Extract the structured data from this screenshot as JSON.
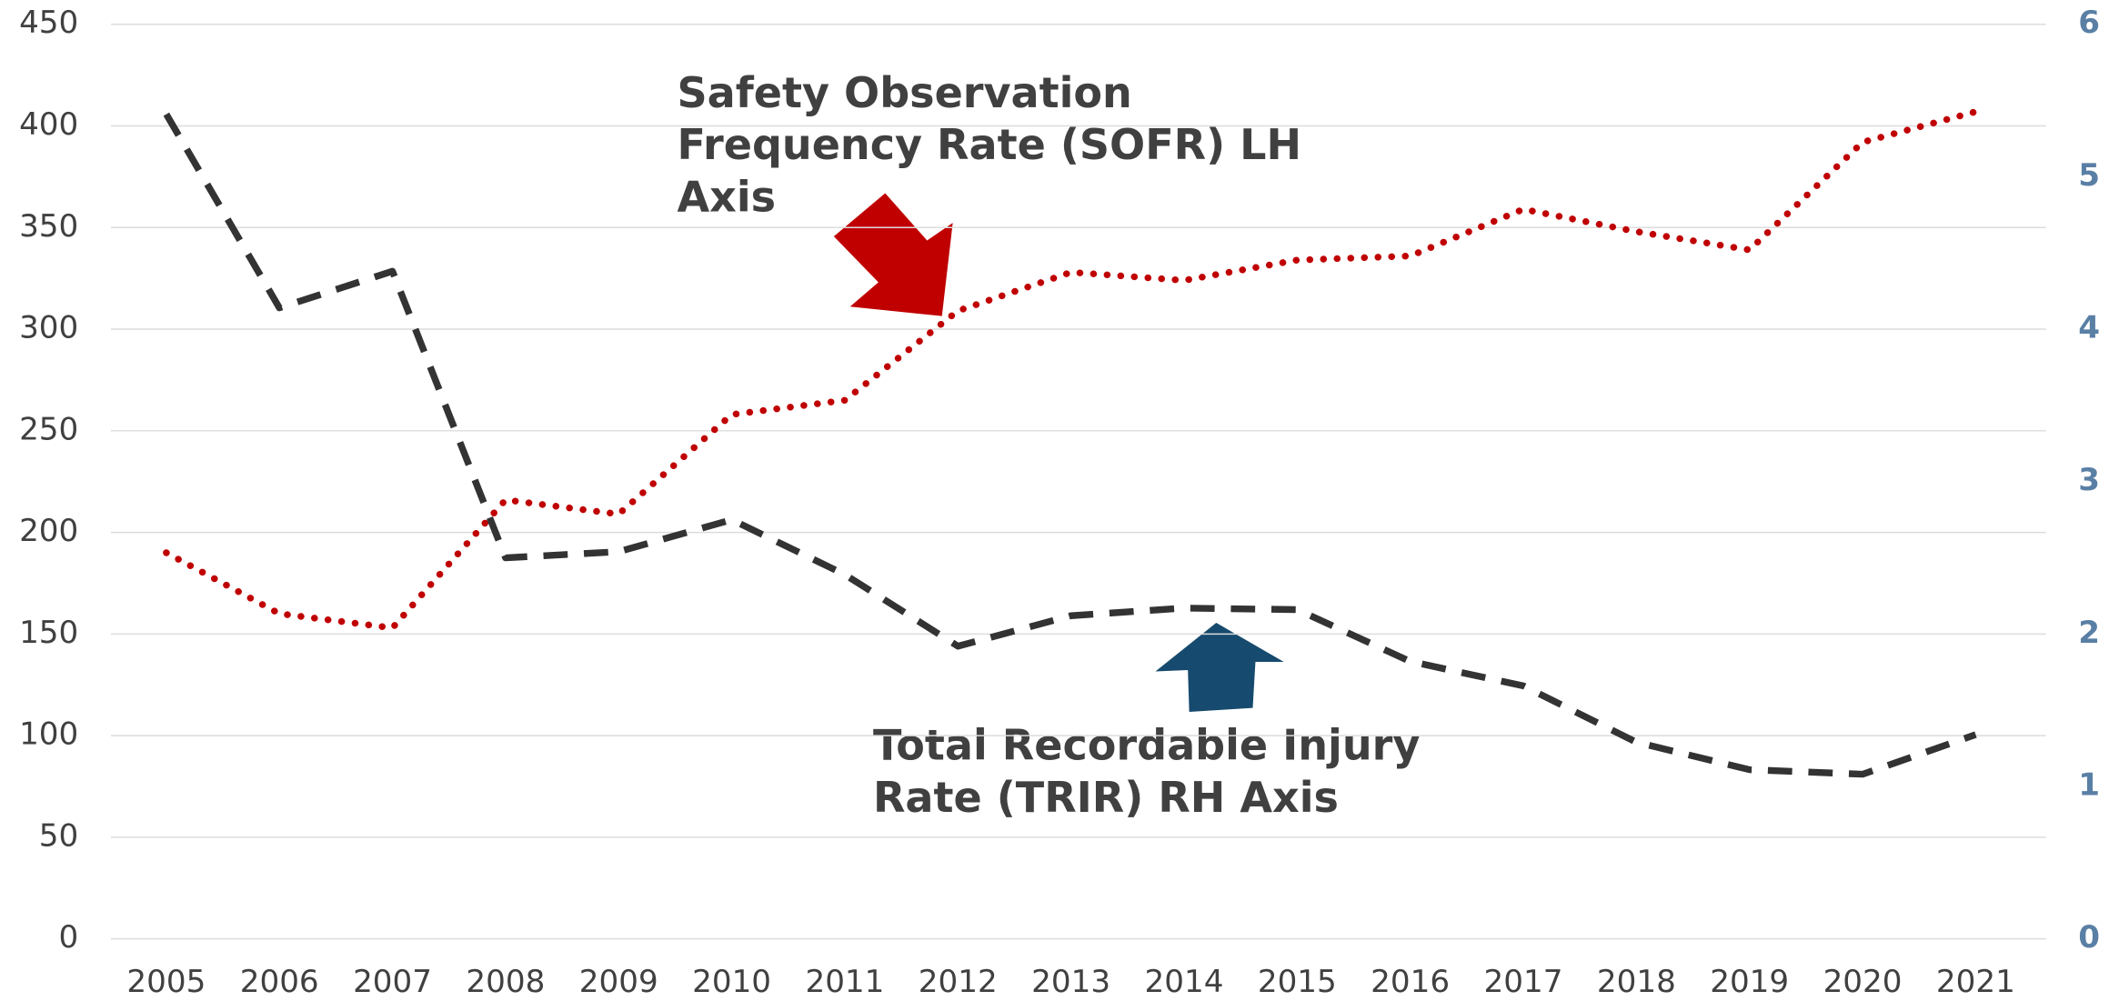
{
  "chart_data": {
    "type": "line",
    "annotations": [
      [
        "Safety Observation",
        "Frequency Rate (SOFR) LH",
        "Axis"
      ],
      [
        "Total Recordable Injury",
        "Rate (TRIR) RH Axis"
      ]
    ],
    "categories": [
      "2005",
      "2006",
      "2007",
      "2008",
      "2009",
      "2010",
      "2011",
      "2012",
      "2013",
      "2014",
      "2015",
      "2016",
      "2017",
      "2018",
      "2019",
      "2020",
      "2021"
    ],
    "series": [
      {
        "color": "#c00000",
        "dash": "dotted",
        "axis": "y",
        "values": [
          190,
          160,
          153,
          216,
          209,
          258,
          265,
          309,
          328,
          324,
          334,
          336,
          359,
          348,
          339,
          392,
          407
        ]
      },
      {
        "color": "#333333",
        "dash": "dashed",
        "axis": "y2",
        "values": [
          5.41,
          4.14,
          4.38,
          2.5,
          2.54,
          2.75,
          2.39,
          1.92,
          2.12,
          2.17,
          2.16,
          1.82,
          1.66,
          1.29,
          1.11,
          1.08,
          1.34
        ]
      }
    ],
    "ylim": [
      0,
      450
    ],
    "yticks": [
      0,
      50,
      100,
      150,
      200,
      250,
      300,
      350,
      400,
      450
    ],
    "y2lim": [
      0,
      6
    ],
    "y2ticks": [
      0,
      1,
      2,
      3,
      4,
      5,
      6
    ],
    "grid": true
  }
}
